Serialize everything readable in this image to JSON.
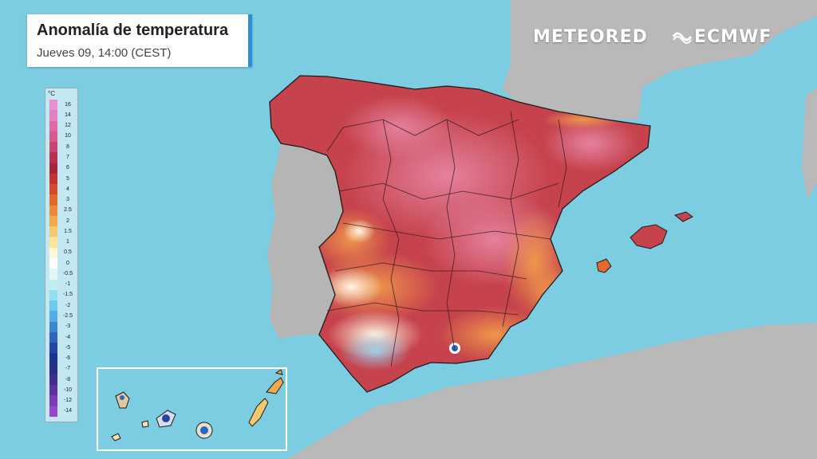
{
  "title": "Anomalía de temperatura",
  "subtitle": "Jueves 09, 14:00 (CEST)",
  "brands": {
    "primary": "METEORED",
    "secondary": "ECMWF"
  },
  "legend": {
    "unit": "°C",
    "labels": [
      "16",
      "14",
      "12",
      "10",
      "8",
      "7",
      "6",
      "5",
      "4",
      "3",
      "2.5",
      "2",
      "1.5",
      "1",
      "0.5",
      "0",
      "-0.5",
      "-1",
      "-1.5",
      "-2",
      "-2.5",
      "-3",
      "-4",
      "-5",
      "-6",
      "-7",
      "-8",
      "-10",
      "-12",
      "-14"
    ],
    "colors": [
      "#e98ed2",
      "#e47fc0",
      "#dc6aa5",
      "#d45b8a",
      "#c94470",
      "#b8324f",
      "#a8263a",
      "#c0352f",
      "#d44a2b",
      "#e06a2c",
      "#ea8a3a",
      "#f0a94e",
      "#f6c86e",
      "#fbe59e",
      "#fff8d8",
      "#ffffff",
      "#e3f7f6",
      "#bdeef0",
      "#94dfee",
      "#6fc9ec",
      "#55abe2",
      "#3f86d2",
      "#2f64bf",
      "#2546a8",
      "#1f3290",
      "#2a2f86",
      "#3e2f8e",
      "#5b33a0",
      "#7b3cb8",
      "#9a47cc"
    ]
  },
  "palette": {
    "sea": "#7dcde2",
    "land": "#b7b7b7",
    "spain_hot": "#c6434d",
    "spain_pink": "#d9697e",
    "orange": "#e46a2e",
    "cool": "#f3f3e6",
    "border": "#1b1b1b"
  },
  "icons": [
    "ecmwf-logo-icon"
  ]
}
